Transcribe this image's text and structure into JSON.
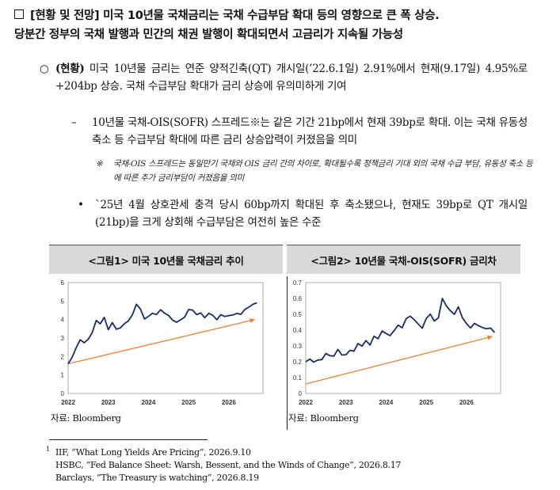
{
  "heading": {
    "line1": "[현황 및 전망] 미국 10년물 국채금리는 국채 수급부담 확대 등의 영향으로 큰 폭 상승.",
    "line2": "당분간 정부의 국채 발행과 민간의 채권 발행이 확대되면서 고금리가 지속될 가능성"
  },
  "bullets": {
    "p1_marker": "○",
    "p1_label": "(현황)",
    "p1_text": " 미국 10년물 금리는 연준 양적긴축(QT) 개시일(’22.6.1일) 2.91%에서 현재(9.17일) 4.95%로 +204bp 상승. 국채 수급부담 확대가 금리 상승에 유의미하게 기여",
    "p2_marker": "–",
    "p2_text": "10년물 국채-OIS(SOFR) 스프레드※는 같은 기간 21bp에서 현재 39bp로 확대. 이는 국채 유동성 축소 등 수급부담 확대에 따른 금리 상승압력이 커졌음을 의미",
    "note_marker": "※",
    "note_text": "국채-OIS 스프레드는 동일만기 국채와 OIS 금리 간의 차이로, 확대될수록 정책금리 기대 외의 국채 수급 부담, 유동성 축소 등에 따른 추가 금리부담이 커졌음을 의미",
    "p3_marker": "•",
    "p3_text": "`25년 4월 상호관세 충격 당시 60bp까지 확대된 후 축소됐으나, 현재도 39bp로 QT 개시일(21bp)을 크게 상회해 수급부담은 여전히 높은 수준"
  },
  "chart_data": [
    {
      "type": "line",
      "title": "<그림1> 미국 10년물 국채금리 추이",
      "x_ticks": [
        "2022",
        "2023",
        "2024",
        "2025",
        "2026"
      ],
      "y_ticks": [
        "0",
        "1",
        "2",
        "3",
        "4",
        "5",
        "6"
      ],
      "ylim": [
        0,
        6
      ],
      "source": "자료: Bloomberg",
      "series": [
        {
          "color": "#1b2a6b",
          "x": [
            2022.0,
            2022.1,
            2022.2,
            2022.3,
            2022.4,
            2022.5,
            2022.6,
            2022.7,
            2022.8,
            2022.9,
            2023.0,
            2023.1,
            2023.2,
            2023.3,
            2023.4,
            2023.5,
            2023.6,
            2023.7,
            2023.8,
            2023.9,
            2024.0,
            2024.1,
            2024.2,
            2024.3,
            2024.4,
            2024.5,
            2024.6,
            2024.7,
            2024.8,
            2024.9,
            2025.0,
            2025.1,
            2025.2,
            2025.3,
            2025.4,
            2025.5,
            2025.6,
            2025.7,
            2025.8,
            2025.9,
            2026.0,
            2026.1,
            2026.2,
            2026.3,
            2026.4,
            2026.5,
            2026.6,
            2026.7
          ],
          "y": [
            1.6,
            1.9,
            2.4,
            2.9,
            2.8,
            3.0,
            3.3,
            3.9,
            3.7,
            4.1,
            3.5,
            3.9,
            3.5,
            3.5,
            3.7,
            3.9,
            4.3,
            4.9,
            4.6,
            4.0,
            4.1,
            4.3,
            4.3,
            4.6,
            4.4,
            4.2,
            3.9,
            3.8,
            4.0,
            4.2,
            4.6,
            4.5,
            4.2,
            4.3,
            4.1,
            4.4,
            4.3,
            4.0,
            4.2,
            4.1,
            4.2,
            4.3,
            4.4,
            4.3,
            4.5,
            4.6,
            4.8,
            4.95
          ]
        }
      ],
      "trend": {
        "color": "#f08030",
        "x": [
          2022.0,
          2026.65
        ],
        "y": [
          1.6,
          4.0
        ]
      }
    },
    {
      "type": "line",
      "title": "<그림2> 10년물 국채-OIS(SOFR) 금리차",
      "x_ticks": [
        "2022",
        "2023",
        "2024",
        "2025",
        "2026"
      ],
      "y_ticks": [
        "0",
        "0.1",
        "0.2",
        "0.3",
        "0.4",
        "0.5",
        "0.6",
        "0.7"
      ],
      "ylim": [
        0,
        0.7
      ],
      "source": "자료: Bloomberg",
      "series": [
        {
          "color": "#1b2a6b",
          "x": [
            2022.0,
            2022.1,
            2022.2,
            2022.3,
            2022.4,
            2022.5,
            2022.6,
            2022.7,
            2022.8,
            2022.9,
            2023.0,
            2023.1,
            2023.2,
            2023.3,
            2023.4,
            2023.5,
            2023.6,
            2023.7,
            2023.8,
            2023.9,
            2024.0,
            2024.1,
            2024.2,
            2024.3,
            2024.4,
            2024.5,
            2024.6,
            2024.7,
            2024.8,
            2024.9,
            2025.0,
            2025.1,
            2025.2,
            2025.3,
            2025.4,
            2025.5,
            2025.6,
            2025.7,
            2025.8,
            2025.9,
            2026.0,
            2026.1,
            2026.2,
            2026.3,
            2026.4,
            2026.5,
            2026.6,
            2026.7
          ],
          "y": [
            0.2,
            0.21,
            0.19,
            0.21,
            0.22,
            0.26,
            0.24,
            0.23,
            0.27,
            0.24,
            0.25,
            0.28,
            0.27,
            0.31,
            0.29,
            0.33,
            0.31,
            0.37,
            0.35,
            0.39,
            0.37,
            0.36,
            0.4,
            0.44,
            0.42,
            0.47,
            0.48,
            0.46,
            0.44,
            0.42,
            0.48,
            0.5,
            0.45,
            0.47,
            0.6,
            0.56,
            0.53,
            0.5,
            0.54,
            0.47,
            0.44,
            0.42,
            0.45,
            0.43,
            0.41,
            0.4,
            0.41,
            0.39
          ]
        }
      ],
      "trend": {
        "color": "#f08030",
        "x": [
          2022.0,
          2026.65
        ],
        "y": [
          0.06,
          0.36
        ]
      }
    }
  ],
  "footnotes": {
    "marker": "1",
    "line1": "IIF, “What Long Yields Are Pricing”, 2026.9.10",
    "line2": "HSBC, “Fed Balance Sheet: Warsh, Bessent, and the Winds of Change”, 2026.8.17",
    "line3": "Barclays, “The Treasury is watching”, 2026.8.19"
  }
}
